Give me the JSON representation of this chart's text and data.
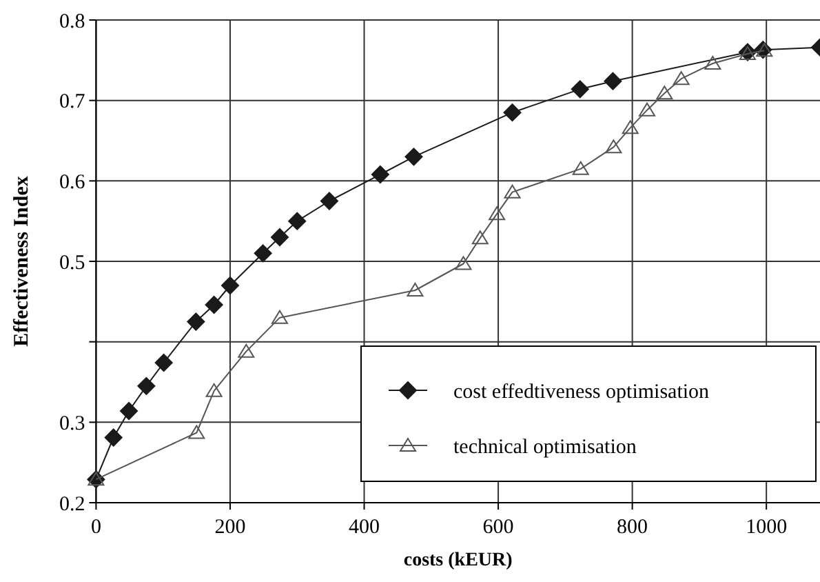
{
  "chart_data": {
    "type": "line",
    "xlabel": "costs (kEUR)",
    "ylabel": "Effectiveness Index",
    "xlim": [
      0,
      1080
    ],
    "xticks": [
      0,
      200,
      400,
      600,
      800,
      1000
    ],
    "ylim": [
      0.2,
      0.8
    ],
    "yticks": [
      0.2,
      0.3,
      {
        "value": 0.4,
        "label": null
      },
      0.5,
      0.6,
      0.7,
      0.8
    ],
    "grid": true,
    "legend": "bottom right",
    "series": [
      {
        "name": "cost effedtiveness optimisation",
        "color": "#1a1a1a",
        "marker": "diamond",
        "x": [
          0,
          26,
          49,
          75,
          101,
          149,
          176,
          200,
          249,
          274,
          300,
          348,
          424,
          474,
          621,
          722,
          771,
          972,
          995,
          1080
        ],
        "values": [
          0.229,
          0.281,
          0.314,
          0.345,
          0.374,
          0.425,
          0.446,
          0.47,
          0.51,
          0.53,
          0.55,
          0.575,
          0.608,
          0.63,
          0.685,
          0.714,
          0.724,
          0.76,
          0.763,
          0.766
        ]
      },
      {
        "name": "technical optimisation",
        "color": "#555555",
        "marker": "triangle",
        "x": [
          0,
          150,
          176,
          224,
          274,
          476,
          548,
          573,
          598,
          621,
          723,
          772,
          797,
          822,
          848,
          873,
          920,
          972,
          997
        ],
        "values": [
          0.229,
          0.287,
          0.339,
          0.388,
          0.43,
          0.464,
          0.497,
          0.529,
          0.559,
          0.586,
          0.615,
          0.642,
          0.666,
          0.688,
          0.709,
          0.727,
          0.746,
          0.758,
          0.762
        ]
      }
    ]
  }
}
